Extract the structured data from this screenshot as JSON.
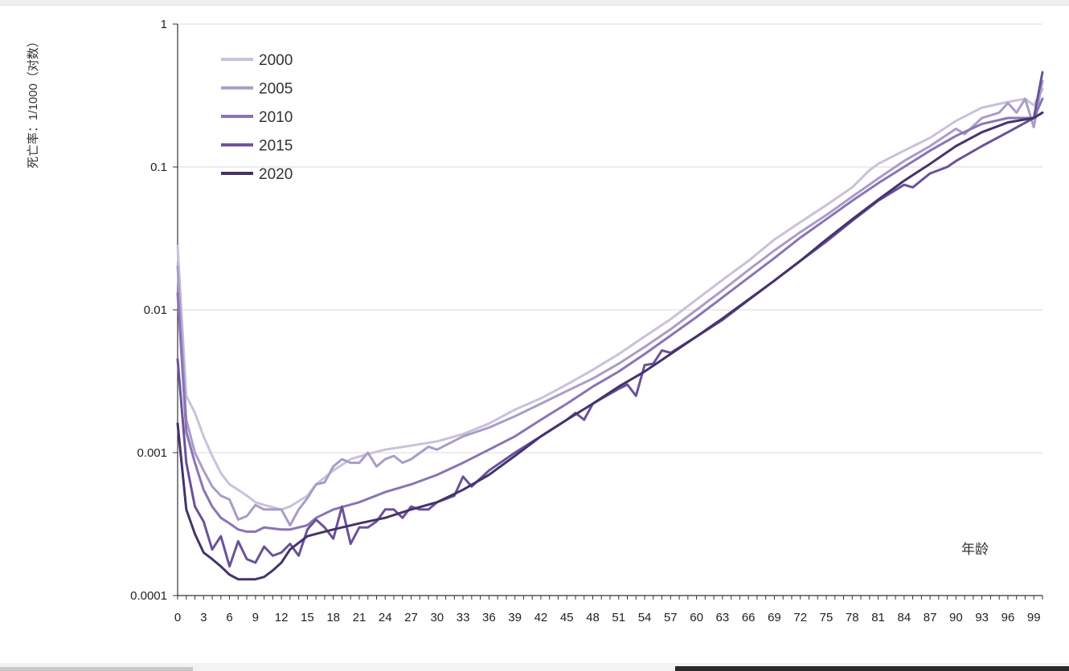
{
  "chart_data": {
    "type": "line",
    "ylabel": "死亡率：1/1000（对数）",
    "xlabel": "年龄",
    "yscale": "log",
    "ylim": [
      0.0001,
      1
    ],
    "xlim": [
      0,
      100
    ],
    "y_ticks": [
      1,
      0.1,
      0.01,
      0.001,
      0.0001
    ],
    "y_tick_labels": [
      "1",
      "0.1",
      "0.01",
      "0.001",
      "0.0001"
    ],
    "x_ticks": [
      0,
      3,
      6,
      9,
      12,
      15,
      18,
      21,
      24,
      27,
      30,
      33,
      36,
      39,
      42,
      45,
      48,
      51,
      54,
      57,
      60,
      63,
      66,
      69,
      72,
      75,
      78,
      81,
      84,
      87,
      90,
      93,
      96,
      99
    ],
    "grid": "horizontal",
    "legend_position": "top-left",
    "series": [
      {
        "name": "2000",
        "color": "#c9c1dc",
        "points": [
          [
            0,
            0.028
          ],
          [
            1,
            0.0025
          ],
          [
            2,
            0.0019
          ],
          [
            3,
            0.0013
          ],
          [
            4,
            0.00095
          ],
          [
            5,
            0.00072
          ],
          [
            6,
            0.0006
          ],
          [
            7,
            0.00055
          ],
          [
            8,
            0.0005
          ],
          [
            9,
            0.00045
          ],
          [
            10,
            0.00043
          ],
          [
            12,
            0.0004
          ],
          [
            13,
            0.00042
          ],
          [
            15,
            0.0005
          ],
          [
            16,
            0.0006
          ],
          [
            18,
            0.00075
          ],
          [
            20,
            0.0009
          ],
          [
            22,
            0.00098
          ],
          [
            24,
            0.00105
          ],
          [
            27,
            0.00112
          ],
          [
            30,
            0.0012
          ],
          [
            33,
            0.00135
          ],
          [
            36,
            0.0016
          ],
          [
            39,
            0.002
          ],
          [
            42,
            0.0024
          ],
          [
            45,
            0.003
          ],
          [
            48,
            0.0038
          ],
          [
            51,
            0.0049
          ],
          [
            54,
            0.0065
          ],
          [
            57,
            0.0086
          ],
          [
            60,
            0.0118
          ],
          [
            63,
            0.0162
          ],
          [
            66,
            0.022
          ],
          [
            69,
            0.031
          ],
          [
            72,
            0.041
          ],
          [
            75,
            0.054
          ],
          [
            78,
            0.072
          ],
          [
            80,
            0.095
          ],
          [
            81,
            0.105
          ],
          [
            84,
            0.13
          ],
          [
            87,
            0.16
          ],
          [
            90,
            0.21
          ],
          [
            93,
            0.26
          ],
          [
            96,
            0.285
          ],
          [
            98,
            0.3
          ],
          [
            99,
            0.27
          ],
          [
            100,
            0.35
          ]
        ]
      },
      {
        "name": "2005",
        "color": "#a99cc8",
        "points": [
          [
            0,
            0.02
          ],
          [
            1,
            0.0017
          ],
          [
            2,
            0.001
          ],
          [
            3,
            0.00075
          ],
          [
            4,
            0.00058
          ],
          [
            5,
            0.0005
          ],
          [
            6,
            0.00047
          ],
          [
            7,
            0.00034
          ],
          [
            8,
            0.00036
          ],
          [
            9,
            0.00043
          ],
          [
            10,
            0.0004
          ],
          [
            12,
            0.0004
          ],
          [
            13,
            0.00031
          ],
          [
            14,
            0.0004
          ],
          [
            15,
            0.00048
          ],
          [
            16,
            0.0006
          ],
          [
            17,
            0.00062
          ],
          [
            18,
            0.0008
          ],
          [
            19,
            0.0009
          ],
          [
            20,
            0.00085
          ],
          [
            21,
            0.00085
          ],
          [
            22,
            0.001
          ],
          [
            23,
            0.0008
          ],
          [
            24,
            0.0009
          ],
          [
            25,
            0.00095
          ],
          [
            26,
            0.00085
          ],
          [
            27,
            0.0009
          ],
          [
            29,
            0.0011
          ],
          [
            30,
            0.00105
          ],
          [
            33,
            0.0013
          ],
          [
            36,
            0.0015
          ],
          [
            39,
            0.0018
          ],
          [
            42,
            0.0022
          ],
          [
            45,
            0.0027
          ],
          [
            48,
            0.0033
          ],
          [
            51,
            0.0042
          ],
          [
            54,
            0.0055
          ],
          [
            57,
            0.0073
          ],
          [
            60,
            0.01
          ],
          [
            63,
            0.0137
          ],
          [
            66,
            0.019
          ],
          [
            69,
            0.026
          ],
          [
            72,
            0.035
          ],
          [
            75,
            0.046
          ],
          [
            78,
            0.062
          ],
          [
            81,
            0.083
          ],
          [
            84,
            0.11
          ],
          [
            87,
            0.14
          ],
          [
            90,
            0.185
          ],
          [
            91,
            0.17
          ],
          [
            93,
            0.22
          ],
          [
            95,
            0.24
          ],
          [
            96,
            0.28
          ],
          [
            97,
            0.24
          ],
          [
            98,
            0.3
          ],
          [
            99,
            0.19
          ],
          [
            100,
            0.4
          ]
        ]
      },
      {
        "name": "2010",
        "color": "#8a74b6",
        "points": [
          [
            0,
            0.013
          ],
          [
            1,
            0.0014
          ],
          [
            2,
            0.00085
          ],
          [
            3,
            0.00055
          ],
          [
            4,
            0.00042
          ],
          [
            5,
            0.00035
          ],
          [
            6,
            0.00032
          ],
          [
            7,
            0.00029
          ],
          [
            8,
            0.00028
          ],
          [
            9,
            0.00028
          ],
          [
            10,
            0.0003
          ],
          [
            12,
            0.00029
          ],
          [
            13,
            0.00029
          ],
          [
            15,
            0.00031
          ],
          [
            16,
            0.00035
          ],
          [
            18,
            0.0004
          ],
          [
            21,
            0.00045
          ],
          [
            24,
            0.00053
          ],
          [
            27,
            0.0006
          ],
          [
            30,
            0.0007
          ],
          [
            33,
            0.00085
          ],
          [
            36,
            0.00105
          ],
          [
            39,
            0.0013
          ],
          [
            42,
            0.0017
          ],
          [
            45,
            0.0022
          ],
          [
            48,
            0.0029
          ],
          [
            51,
            0.0037
          ],
          [
            54,
            0.0049
          ],
          [
            57,
            0.0066
          ],
          [
            60,
            0.0089
          ],
          [
            63,
            0.0122
          ],
          [
            66,
            0.0168
          ],
          [
            69,
            0.023
          ],
          [
            72,
            0.032
          ],
          [
            75,
            0.043
          ],
          [
            78,
            0.058
          ],
          [
            81,
            0.077
          ],
          [
            84,
            0.1
          ],
          [
            87,
            0.13
          ],
          [
            90,
            0.165
          ],
          [
            93,
            0.2
          ],
          [
            96,
            0.22
          ],
          [
            99,
            0.22
          ],
          [
            100,
            0.3
          ]
        ]
      },
      {
        "name": "2015",
        "color": "#6a5298",
        "points": [
          [
            0,
            0.0045
          ],
          [
            1,
            0.00085
          ],
          [
            2,
            0.00042
          ],
          [
            3,
            0.00033
          ],
          [
            4,
            0.00021
          ],
          [
            5,
            0.00026
          ],
          [
            6,
            0.00016
          ],
          [
            7,
            0.00024
          ],
          [
            8,
            0.00018
          ],
          [
            9,
            0.00017
          ],
          [
            10,
            0.00022
          ],
          [
            11,
            0.00019
          ],
          [
            12,
            0.0002
          ],
          [
            13,
            0.00023
          ],
          [
            14,
            0.00019
          ],
          [
            15,
            0.00029
          ],
          [
            16,
            0.00034
          ],
          [
            17,
            0.0003
          ],
          [
            18,
            0.00025
          ],
          [
            19,
            0.00042
          ],
          [
            20,
            0.00023
          ],
          [
            21,
            0.0003
          ],
          [
            22,
            0.0003
          ],
          [
            23,
            0.00033
          ],
          [
            24,
            0.0004
          ],
          [
            25,
            0.0004
          ],
          [
            26,
            0.00035
          ],
          [
            27,
            0.00042
          ],
          [
            28,
            0.0004
          ],
          [
            29,
            0.0004
          ],
          [
            30,
            0.00045
          ],
          [
            32,
            0.0005
          ],
          [
            33,
            0.00068
          ],
          [
            34,
            0.00058
          ],
          [
            36,
            0.00075
          ],
          [
            39,
            0.001
          ],
          [
            42,
            0.0013
          ],
          [
            45,
            0.0017
          ],
          [
            46,
            0.0019
          ],
          [
            47,
            0.0017
          ],
          [
            48,
            0.0022
          ],
          [
            51,
            0.0028
          ],
          [
            52,
            0.003
          ],
          [
            53,
            0.0025
          ],
          [
            54,
            0.0041
          ],
          [
            55,
            0.0042
          ],
          [
            56,
            0.0052
          ],
          [
            57,
            0.005
          ],
          [
            60,
            0.0065
          ],
          [
            63,
            0.0085
          ],
          [
            66,
            0.0117
          ],
          [
            69,
            0.016
          ],
          [
            72,
            0.022
          ],
          [
            75,
            0.03
          ],
          [
            78,
            0.042
          ],
          [
            81,
            0.058
          ],
          [
            84,
            0.075
          ],
          [
            85,
            0.072
          ],
          [
            87,
            0.09
          ],
          [
            89,
            0.1
          ],
          [
            90,
            0.11
          ],
          [
            93,
            0.14
          ],
          [
            96,
            0.175
          ],
          [
            99,
            0.22
          ],
          [
            100,
            0.46
          ]
        ]
      },
      {
        "name": "2020",
        "color": "#45336b",
        "points": [
          [
            0,
            0.0016
          ],
          [
            1,
            0.0004
          ],
          [
            2,
            0.00027
          ],
          [
            3,
            0.0002
          ],
          [
            4,
            0.00018
          ],
          [
            5,
            0.00016
          ],
          [
            6,
            0.00014
          ],
          [
            7,
            0.00013
          ],
          [
            8,
            0.00013
          ],
          [
            9,
            0.00013
          ],
          [
            10,
            0.000135
          ],
          [
            11,
            0.00015
          ],
          [
            12,
            0.00017
          ],
          [
            13,
            0.00021
          ],
          [
            15,
            0.00026
          ],
          [
            16,
            0.00027
          ],
          [
            18,
            0.00029
          ],
          [
            21,
            0.00032
          ],
          [
            24,
            0.00035
          ],
          [
            27,
            0.0004
          ],
          [
            30,
            0.00045
          ],
          [
            33,
            0.00055
          ],
          [
            36,
            0.0007
          ],
          [
            39,
            0.00095
          ],
          [
            42,
            0.0013
          ],
          [
            45,
            0.0017
          ],
          [
            48,
            0.0022
          ],
          [
            51,
            0.0029
          ],
          [
            54,
            0.0037
          ],
          [
            57,
            0.0049
          ],
          [
            60,
            0.0065
          ],
          [
            63,
            0.0087
          ],
          [
            66,
            0.0118
          ],
          [
            69,
            0.016
          ],
          [
            72,
            0.022
          ],
          [
            75,
            0.031
          ],
          [
            78,
            0.043
          ],
          [
            81,
            0.059
          ],
          [
            84,
            0.08
          ],
          [
            87,
            0.105
          ],
          [
            90,
            0.14
          ],
          [
            93,
            0.175
          ],
          [
            96,
            0.205
          ],
          [
            99,
            0.22
          ],
          [
            100,
            0.24
          ]
        ]
      }
    ]
  }
}
